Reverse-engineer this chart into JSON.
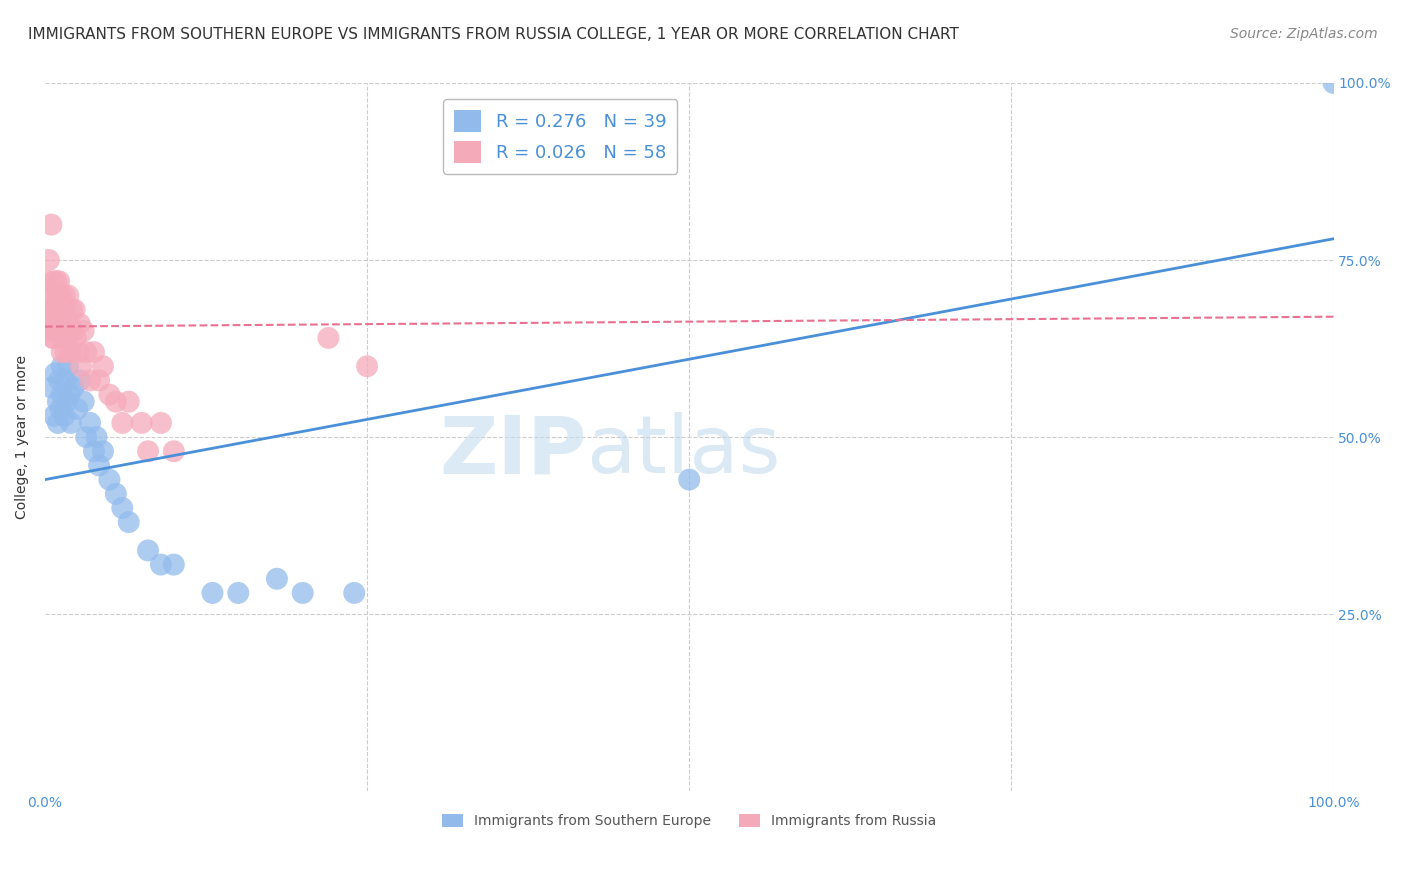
{
  "title": "IMMIGRANTS FROM SOUTHERN EUROPE VS IMMIGRANTS FROM RUSSIA COLLEGE, 1 YEAR OR MORE CORRELATION CHART",
  "source": "Source: ZipAtlas.com",
  "ylabel": "College, 1 year or more",
  "xlabel_blue": "Immigrants from Southern Europe",
  "xlabel_pink": "Immigrants from Russia",
  "blue_R": 0.276,
  "blue_N": 39,
  "pink_R": 0.026,
  "pink_N": 58,
  "blue_color": "#92BBEC",
  "pink_color": "#F5AABA",
  "blue_line_color": "#4A90D9",
  "pink_line_color": "#E87090",
  "background_color": "#FFFFFF",
  "xlim": [
    0,
    1.0
  ],
  "ylim": [
    0,
    1.0
  ],
  "grid_color": "#CCCCCC",
  "title_fontsize": 11,
  "label_fontsize": 10,
  "tick_fontsize": 10,
  "legend_fontsize": 13,
  "source_fontsize": 10,
  "blue_x": [
    0.005,
    0.007,
    0.008,
    0.01,
    0.01,
    0.011,
    0.012,
    0.013,
    0.013,
    0.015,
    0.016,
    0.017,
    0.018,
    0.019,
    0.02,
    0.022,
    0.025,
    0.027,
    0.03,
    0.032,
    0.035,
    0.038,
    0.04,
    0.042,
    0.045,
    0.05,
    0.055,
    0.06,
    0.065,
    0.08,
    0.09,
    0.1,
    0.13,
    0.15,
    0.18,
    0.2,
    0.24,
    0.5,
    1.0
  ],
  "blue_y": [
    0.57,
    0.53,
    0.59,
    0.55,
    0.52,
    0.58,
    0.54,
    0.6,
    0.56,
    0.53,
    0.58,
    0.55,
    0.6,
    0.56,
    0.52,
    0.57,
    0.54,
    0.58,
    0.55,
    0.5,
    0.52,
    0.48,
    0.5,
    0.46,
    0.48,
    0.44,
    0.42,
    0.4,
    0.38,
    0.34,
    0.32,
    0.32,
    0.28,
    0.28,
    0.3,
    0.28,
    0.28,
    0.44,
    1.0
  ],
  "pink_x": [
    0.002,
    0.003,
    0.003,
    0.004,
    0.005,
    0.005,
    0.005,
    0.006,
    0.006,
    0.007,
    0.007,
    0.007,
    0.008,
    0.008,
    0.009,
    0.009,
    0.01,
    0.01,
    0.01,
    0.011,
    0.011,
    0.012,
    0.012,
    0.013,
    0.013,
    0.014,
    0.014,
    0.015,
    0.015,
    0.016,
    0.016,
    0.017,
    0.018,
    0.019,
    0.02,
    0.021,
    0.022,
    0.023,
    0.024,
    0.026,
    0.027,
    0.028,
    0.03,
    0.032,
    0.035,
    0.038,
    0.042,
    0.045,
    0.05,
    0.055,
    0.06,
    0.065,
    0.075,
    0.08,
    0.09,
    0.1,
    0.22,
    0.25
  ],
  "pink_y": [
    0.72,
    0.68,
    0.75,
    0.65,
    0.7,
    0.66,
    0.8,
    0.68,
    0.64,
    0.72,
    0.68,
    0.64,
    0.7,
    0.66,
    0.72,
    0.68,
    0.65,
    0.7,
    0.66,
    0.72,
    0.68,
    0.65,
    0.7,
    0.66,
    0.62,
    0.68,
    0.64,
    0.7,
    0.66,
    0.62,
    0.68,
    0.64,
    0.7,
    0.66,
    0.62,
    0.68,
    0.65,
    0.68,
    0.64,
    0.62,
    0.66,
    0.6,
    0.65,
    0.62,
    0.58,
    0.62,
    0.58,
    0.6,
    0.56,
    0.55,
    0.52,
    0.55,
    0.52,
    0.48,
    0.52,
    0.48,
    0.64,
    0.6
  ],
  "blue_trend_x0": 0.0,
  "blue_trend_y0": 0.44,
  "blue_trend_x1": 1.0,
  "blue_trend_y1": 0.78,
  "pink_trend_x0": 0.0,
  "pink_trend_y0": 0.656,
  "pink_trend_x1": 1.0,
  "pink_trend_y1": 0.67
}
